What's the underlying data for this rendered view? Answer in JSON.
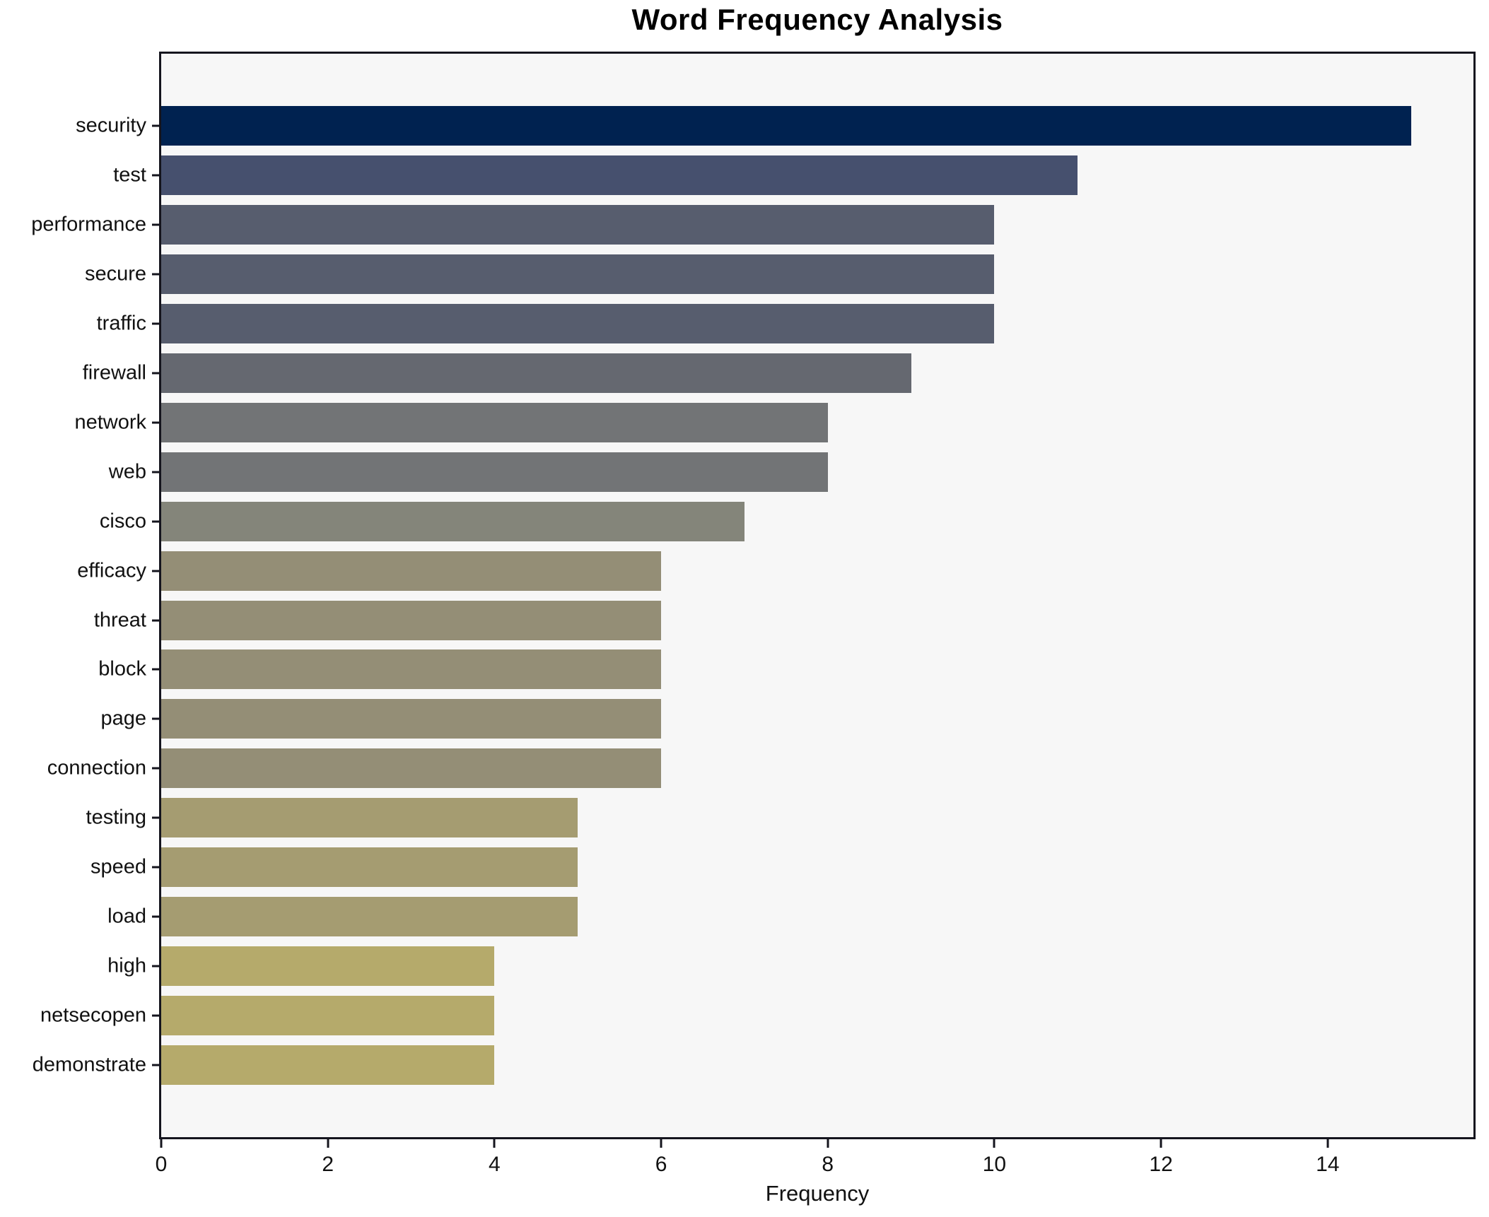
{
  "title": "Word Frequency Analysis",
  "chart_data": {
    "type": "bar",
    "orientation": "horizontal",
    "title": "Word Frequency Analysis",
    "xlabel": "Frequency",
    "ylabel": "",
    "categories": [
      "security",
      "test",
      "performance",
      "secure",
      "traffic",
      "firewall",
      "network",
      "web",
      "cisco",
      "efficacy",
      "threat",
      "block",
      "page",
      "connection",
      "testing",
      "speed",
      "load",
      "high",
      "netsecopen",
      "demonstrate"
    ],
    "values": [
      15,
      11,
      10,
      10,
      10,
      9,
      8,
      8,
      7,
      6,
      6,
      6,
      6,
      6,
      5,
      5,
      5,
      4,
      4,
      4
    ],
    "bar_colors": [
      "#002250",
      "#46506e",
      "#575d6e",
      "#575d6e",
      "#575d6e",
      "#656870",
      "#727476",
      "#727476",
      "#84857a",
      "#948e76",
      "#948e76",
      "#948e76",
      "#948e76",
      "#948e76",
      "#a59c71",
      "#a59c71",
      "#a59c71",
      "#b5aa6b",
      "#b5aa6b",
      "#b5aa6b"
    ],
    "xlim": [
      0,
      15.75
    ],
    "xticks": [
      0,
      2,
      4,
      6,
      8,
      10,
      12,
      14
    ],
    "grid": false,
    "legend_visible": false,
    "plot_background": "#f7f7f7",
    "figure_background": "#ffffff",
    "spine_color": "#15151e"
  }
}
